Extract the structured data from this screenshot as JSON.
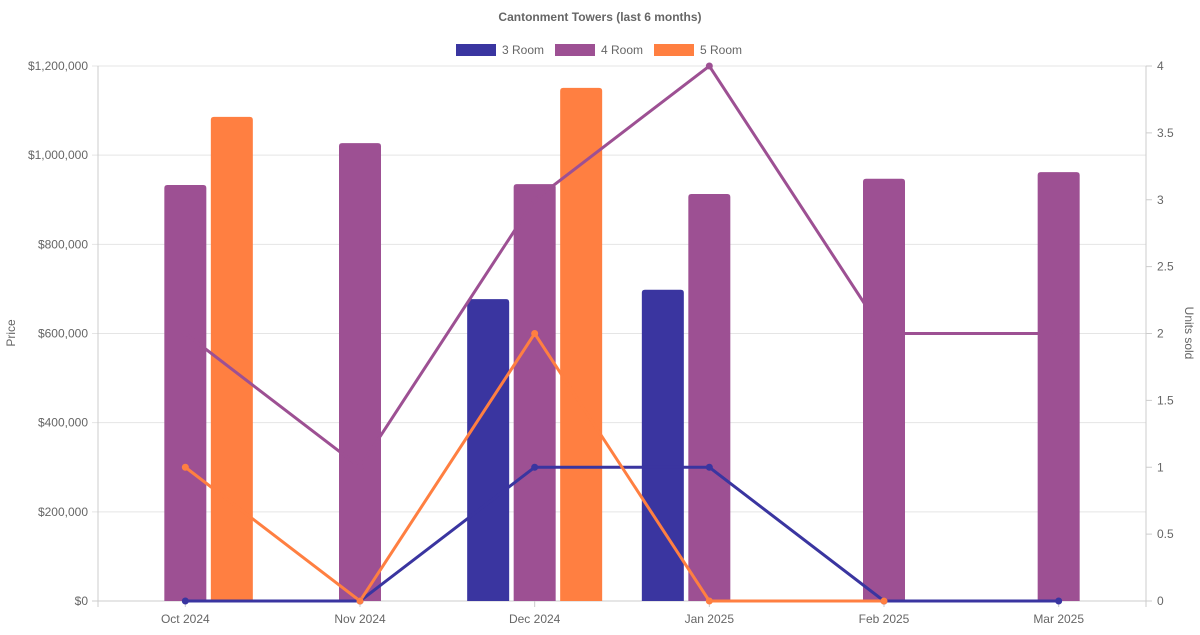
{
  "chart_data": {
    "type": "bar",
    "title": "Cantonment Towers (last 6 months)",
    "categories": [
      "Oct 2024",
      "Nov 2024",
      "Dec 2024",
      "Jan 2025",
      "Feb 2025",
      "Mar 2025"
    ],
    "ylabel": "Price",
    "y2label": "Units sold",
    "ylim": [
      0,
      1200000
    ],
    "y2lim": [
      0,
      4
    ],
    "yticks": [
      "$0",
      "$200,000",
      "$400,000",
      "$600,000",
      "$800,000",
      "$1,000,000",
      "$1,200,000"
    ],
    "y2ticks": [
      "0",
      "0.5",
      "1",
      "1.5",
      "2",
      "2.5",
      "3",
      "3.5",
      "4"
    ],
    "legend_position": "top",
    "series": [
      {
        "name": "3 Room",
        "color": "#3a35a0",
        "price": [
          null,
          null,
          677000,
          698000,
          null,
          null
        ],
        "units": [
          0,
          0,
          1,
          1,
          0,
          0
        ]
      },
      {
        "name": "4 Room",
        "color": "#9d5093",
        "price": [
          933000,
          1027000,
          935000,
          913000,
          947000,
          962000
        ],
        "units": [
          2,
          1,
          3,
          4,
          2,
          2
        ]
      },
      {
        "name": "5 Room",
        "color": "#ff7f41",
        "price": [
          1086000,
          null,
          1151000,
          null,
          null,
          null
        ],
        "units": [
          1,
          0,
          2,
          0,
          0,
          null
        ]
      }
    ]
  }
}
